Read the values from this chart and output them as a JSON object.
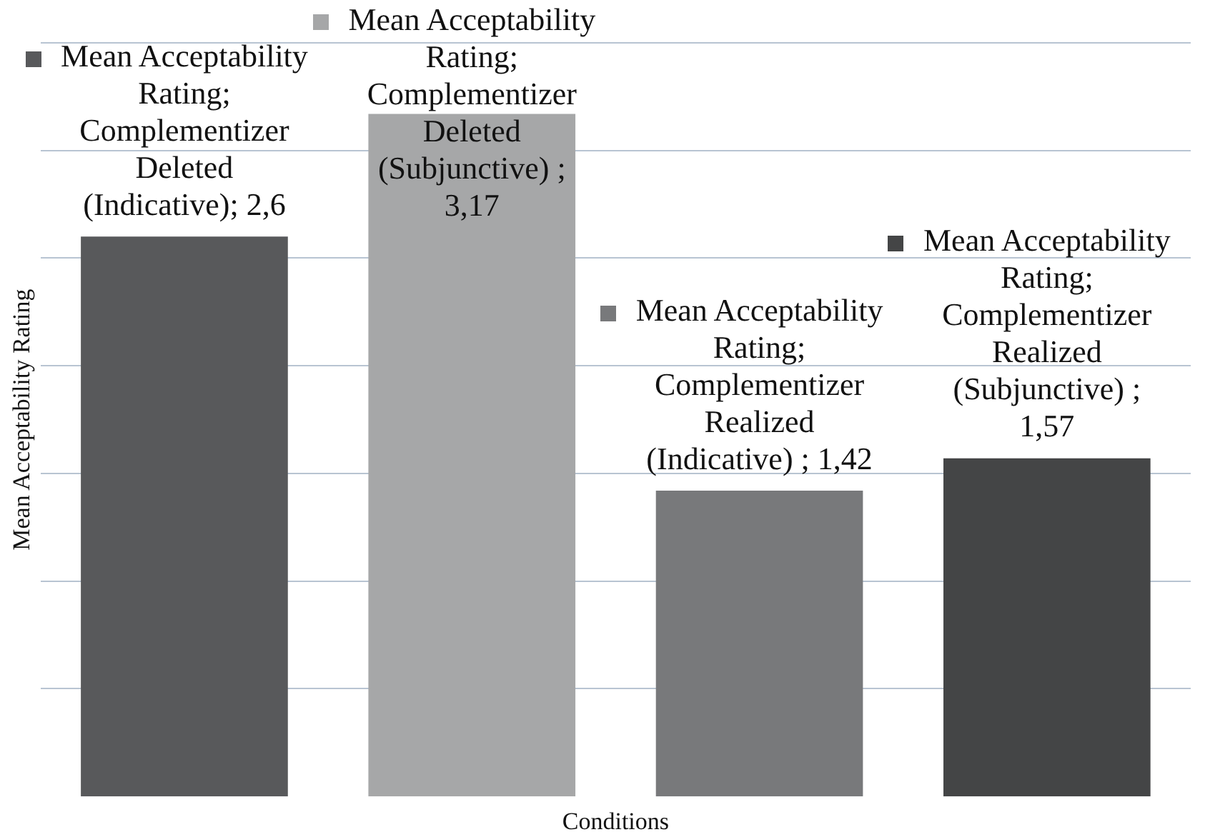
{
  "chart_data": {
    "type": "bar",
    "xlabel": "Conditions",
    "ylabel": "Mean Acceptability Rating",
    "categories": [
      null,
      null,
      null,
      null
    ],
    "values": [
      2.6,
      3.17,
      1.42,
      1.57
    ],
    "colors": [
      "#58595b",
      "#a6a7a8",
      "#78797b",
      "#444546"
    ],
    "value_labels": [
      "Mean Acceptability Rating; Complementizer Deleted (Indicative); 2,6",
      "Mean Acceptability Rating; Complementizer Deleted (Subjunctive) ; 3,17",
      "Mean Acceptability Rating; Complementizer Realized (Indicative) ; 1,42",
      "Mean Acceptability Rating; Complementizer Realized (Subjunctive) ; 1,57"
    ],
    "ylim": [
      0,
      3.5
    ],
    "yticks": [
      0.5,
      1,
      1.5,
      2,
      2.5,
      3,
      3.5
    ],
    "grid": "y",
    "tick_labels": false,
    "legend": false
  }
}
